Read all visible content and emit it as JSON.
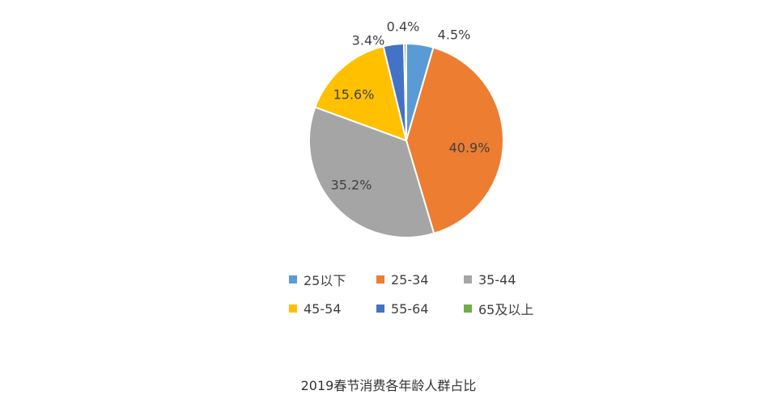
{
  "chart_data": {
    "type": "pie",
    "title": "2019春节消费各年龄人群占比",
    "slices": [
      {
        "label": "25以下",
        "value": 4.5,
        "value_label": "4.5%",
        "color": "#5B9BD5"
      },
      {
        "label": "25-34",
        "value": 40.9,
        "value_label": "40.9%",
        "color": "#ED7D31"
      },
      {
        "label": "35-44",
        "value": 35.2,
        "value_label": "35.2%",
        "color": "#A5A5A5"
      },
      {
        "label": "45-54",
        "value": 15.6,
        "value_label": "15.6%",
        "color": "#FFC000"
      },
      {
        "label": "55-64",
        "value": 3.4,
        "value_label": "3.4%",
        "color": "#4472C4"
      },
      {
        "label": "65及以上",
        "value": 0.4,
        "value_label": "0.4%",
        "color": "#70AD47"
      }
    ],
    "legend_position": "bottom"
  }
}
